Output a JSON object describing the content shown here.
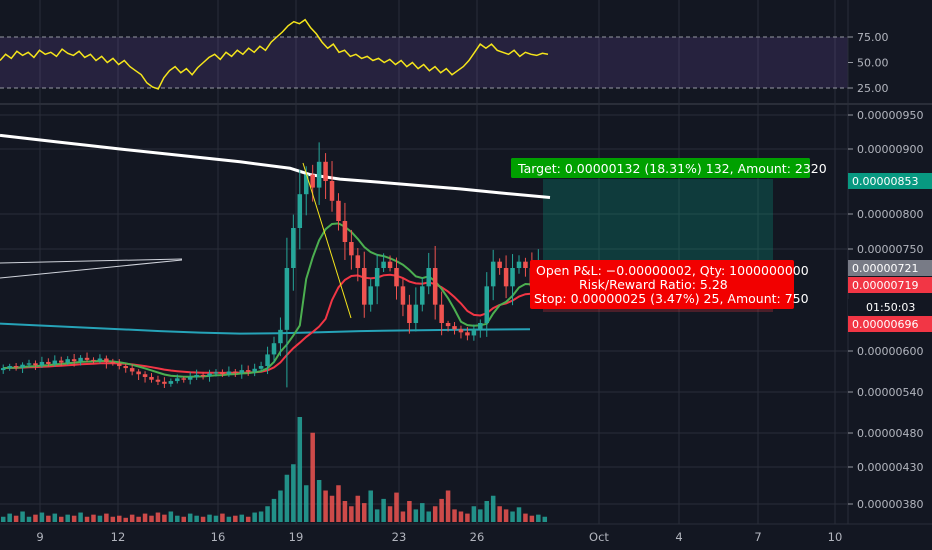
{
  "chart_data": {
    "type": "candlestick",
    "panes": {
      "rsi": {
        "levels": [
          75,
          50,
          25
        ],
        "tick_labels": [
          "75.00",
          "50.00",
          "25.00"
        ],
        "ylim": [
          22,
          95
        ],
        "values": [
          52,
          58,
          54,
          61,
          57,
          60,
          55,
          62,
          58,
          60,
          56,
          63,
          59,
          57,
          61,
          55,
          58,
          52,
          56,
          50,
          54,
          48,
          52,
          46,
          42,
          38,
          30,
          26,
          24,
          35,
          42,
          46,
          40,
          44,
          38,
          45,
          50,
          55,
          58,
          53,
          60,
          56,
          62,
          58,
          64,
          60,
          66,
          62,
          70,
          75,
          80,
          86,
          90,
          88,
          92,
          84,
          78,
          70,
          64,
          68,
          60,
          62,
          56,
          58,
          54,
          56,
          52,
          54,
          50,
          53,
          48,
          52,
          46,
          50,
          44,
          48,
          42,
          46,
          40,
          44,
          38,
          42,
          46,
          52,
          60,
          68,
          64,
          68,
          62,
          60,
          58,
          62,
          56,
          60,
          58,
          57,
          59,
          58
        ]
      },
      "price": {
        "ylim": [
          3.6e-06,
          9.65e-06
        ],
        "tick_labels": [
          "0.00000950",
          "0.00000900",
          "0.00000800",
          "0.00000750",
          "0.00000600",
          "0.00000540",
          "0.00000480",
          "0.00000430",
          "0.00000380"
        ],
        "tick_values": [
          9.5e-06,
          9e-06,
          8e-06,
          7.5e-06,
          6e-06,
          5.4e-06,
          4.8e-06,
          4.3e-06,
          3.8e-06
        ],
        "price_tags": [
          {
            "label": "0.00000853",
            "value": 8.53e-06,
            "color": "#089981"
          },
          {
            "label": "0.00000721",
            "value": 7.21e-06,
            "color": "#787b86"
          },
          {
            "label": "0.00000719",
            "value": 7.19e-06,
            "color": "#f23645"
          },
          {
            "label": "01:50:03",
            "value": 7.08e-06,
            "color": "#131722"
          },
          {
            "label": "0.00000696",
            "value": 6.96e-06,
            "color": "#f23645"
          }
        ],
        "position_tool": {
          "target_label": "Target: 0.00000132 (18.31%) 132, Amount: 2320",
          "open_label": "Open P&L: −0.00000002, Qty: 1000000000",
          "rr_label": "Risk/Reward Ratio: 5.28",
          "stop_label": "Stop: 0.00000025 (3.47%) 25, Amount: 750",
          "entry": 7.21e-06,
          "target": 8.53e-06,
          "stop": 6.96e-06
        },
        "close": [
          5.75e-06,
          5.78e-06,
          5.76e-06,
          5.8e-06,
          5.82e-06,
          5.79e-06,
          5.84e-06,
          5.81e-06,
          5.86e-06,
          5.83e-06,
          5.88e-06,
          5.85e-06,
          5.9e-06,
          5.87e-06,
          5.86e-06,
          5.89e-06,
          5.84e-06,
          5.82e-06,
          5.78e-06,
          5.75e-06,
          5.7e-06,
          5.66e-06,
          5.62e-06,
          5.58e-06,
          5.55e-06,
          5.52e-06,
          5.56e-06,
          5.6e-06,
          5.58e-06,
          5.62e-06,
          5.65e-06,
          5.63e-06,
          5.67e-06,
          5.69e-06,
          5.66e-06,
          5.7e-06,
          5.68e-06,
          5.72e-06,
          5.7e-06,
          5.74e-06,
          5.78e-06,
          5.95e-06,
          6.25e-06,
          6.68e-06,
          7.2e-06,
          7.8e-06,
          8.3e-06,
          8.6e-06,
          8.4e-06,
          8.8e-06,
          8.5e-06,
          8.2e-06,
          7.9e-06,
          7.6e-06,
          7.4e-06,
          7.2e-06,
          7e-06,
          7.1e-06,
          7.2e-06,
          7.3e-06,
          7.2e-06,
          7.1e-06,
          7e-06,
          6.9e-06,
          7e-06,
          7.1e-06,
          7.2e-06,
          7e-06,
          6.9e-06,
          6.8e-06,
          6.7e-06,
          6.6e-06,
          6.5e-06,
          6.7e-06,
          6.9e-06,
          7.1e-06,
          7.3e-06,
          7.2e-06,
          7.1e-06,
          7.2e-06,
          7.3e-06,
          7.2e-06,
          7.1e-06,
          7.2e-06,
          7.21e-06
        ],
        "sma_white": [
          9.2e-06,
          9.1e-06,
          9e-06,
          8.9e-06,
          8.8e-06,
          8.7e-06,
          8.6e-06,
          8.53e-06,
          8.48e-06,
          8.43e-06,
          8.38e-06,
          8.32e-06,
          8.25e-06
        ],
        "sma_white_x": [
          0,
          60,
          120,
          180,
          240,
          290,
          310,
          340,
          380,
          420,
          460,
          500,
          550
        ],
        "blue_line": [
          6.88e-06,
          6.82e-06,
          6.76e-06,
          6.7e-06,
          6.64e-06,
          6.59e-06,
          6.56e-06,
          6.57e-06,
          6.6e-06,
          6.64e-06,
          6.66e-06,
          6.68e-06,
          6.7e-06
        ],
        "blue_line_x": [
          0,
          40,
          80,
          120,
          160,
          200,
          240,
          280,
          320,
          360,
          400,
          460,
          530
        ]
      },
      "volume": {
        "values": [
          0.05,
          0.08,
          0.06,
          0.1,
          0.05,
          0.07,
          0.09,
          0.06,
          0.08,
          0.05,
          0.07,
          0.06,
          0.09,
          0.05,
          0.07,
          0.06,
          0.08,
          0.05,
          0.06,
          0.04,
          0.07,
          0.05,
          0.08,
          0.06,
          0.09,
          0.07,
          0.1,
          0.06,
          0.05,
          0.08,
          0.06,
          0.05,
          0.07,
          0.06,
          0.08,
          0.05,
          0.06,
          0.07,
          0.05,
          0.09,
          0.1,
          0.15,
          0.22,
          0.3,
          0.45,
          0.55,
          1.0,
          0.35,
          0.85,
          0.4,
          0.3,
          0.25,
          0.35,
          0.2,
          0.15,
          0.25,
          0.18,
          0.3,
          0.12,
          0.22,
          0.15,
          0.28,
          0.1,
          0.2,
          0.12,
          0.18,
          0.1,
          0.15,
          0.22,
          0.3,
          0.12,
          0.1,
          0.08,
          0.15,
          0.12,
          0.2,
          0.25,
          0.15,
          0.12,
          0.1,
          0.14,
          0.08,
          0.06,
          0.07,
          0.05
        ]
      }
    },
    "x_axis": {
      "tick_labels": [
        "9",
        "12",
        "16",
        "19",
        "23",
        "26",
        "Oct",
        "4",
        "7",
        "10"
      ]
    }
  }
}
